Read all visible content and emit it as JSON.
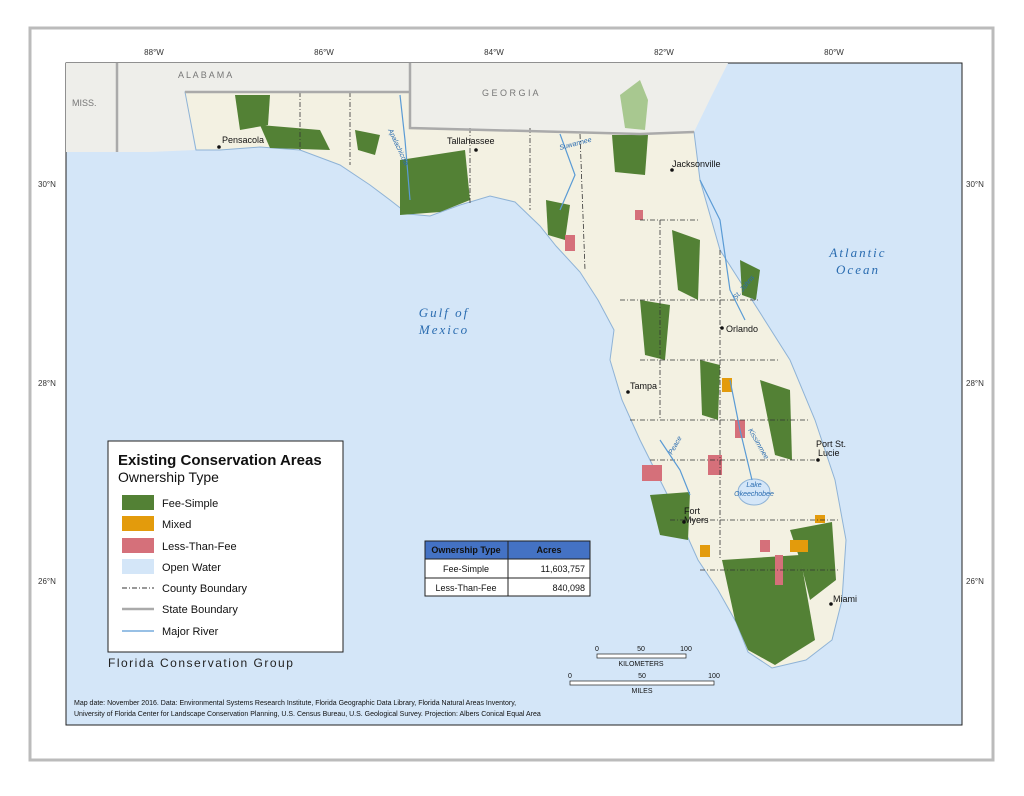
{
  "map": {
    "longitude_labels": [
      "88°W",
      "86°W",
      "84°W",
      "82°W",
      "80°W"
    ],
    "latitude_labels": [
      "30°N",
      "28°N",
      "26°N"
    ],
    "states": [
      "A L A B A M A",
      "MISS.",
      "G E O R G I A"
    ],
    "cities": [
      [
        "Pensacola"
      ],
      [
        "Tallahassee"
      ],
      [
        "Jacksonville"
      ],
      [
        "Orlando"
      ],
      [
        "Tampa"
      ],
      [
        "Port St.",
        "Lucie"
      ],
      [
        "Fort",
        "Myers"
      ],
      [
        "Miami"
      ]
    ],
    "water_labels": [
      [
        "Atlantic",
        "Ocean"
      ],
      [
        "Gulf of",
        "Mexico"
      ],
      [
        "Lake",
        "Okeechobee"
      ]
    ],
    "rivers": [
      "Apalachicola",
      "Suwannee",
      "St. Johns",
      "Kissimmee",
      "Peace"
    ]
  },
  "legend": {
    "title": "Existing Conservation Areas",
    "subtitle": "Ownership Type",
    "items": [
      "Fee-Simple",
      "Mixed",
      "Less-Than-Fee",
      "Open Water",
      "County Boundary",
      "State Boundary",
      "Major River"
    ]
  },
  "table": {
    "headers": [
      "Ownership Type",
      "Acres"
    ],
    "rows": [
      [
        "Fee-Simple",
        "11,603,757"
      ],
      [
        "Less-Than-Fee",
        "840,098"
      ]
    ]
  },
  "scale": {
    "kilometers": {
      "ticks": [
        0,
        50,
        100
      ],
      "label": "KILOMETERS"
    },
    "miles": {
      "ticks": [
        0,
        50,
        100
      ],
      "label": "MILES"
    }
  },
  "credit": "Florida Conservation Group",
  "notes": [
    "Map date: November 2016.  Data: Environmental Systems Research Institute, Florida Geographic Data Library, Florida Natural Areas Inventory,",
    "University of Florida Center for Landscape Conservation Planning, U.S. Census Bureau, U.S. Geological Survey.  Projection: Albers Conical Equal Area"
  ]
}
